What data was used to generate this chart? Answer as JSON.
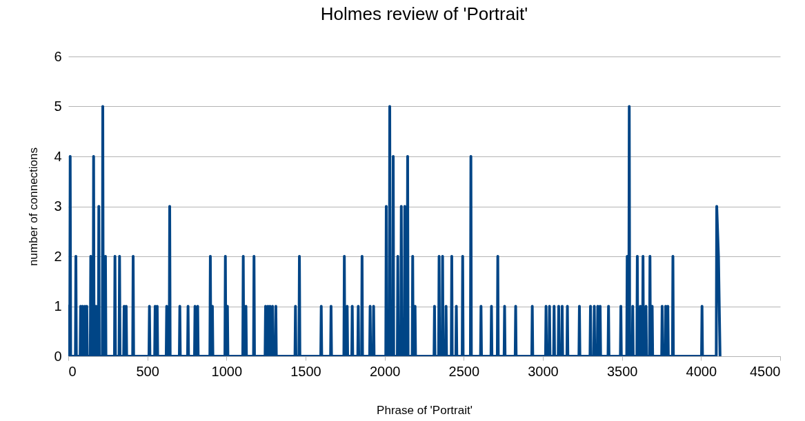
{
  "chart_data": {
    "type": "line",
    "title": "Holmes review of 'Portrait'",
    "xlabel": "Phrase of 'Portrait'",
    "ylabel": "number of connections",
    "xlim": [
      0,
      4500
    ],
    "xticks": [
      0,
      500,
      1000,
      1500,
      2000,
      2500,
      3000,
      3500,
      4000,
      4500
    ],
    "ylim": [
      0,
      6
    ],
    "yticks": [
      0,
      1,
      2,
      3,
      4,
      5,
      6
    ],
    "grid": "y",
    "series": [
      {
        "color": "#004586",
        "x": [
          0,
          3,
          9,
          12,
          15,
          45,
          48,
          51,
          75,
          78,
          81,
          87,
          90,
          93,
          102,
          105,
          108,
          114,
          117,
          120,
          139,
          142,
          145,
          157,
          160,
          163,
          172,
          175,
          178,
          190,
          193,
          196,
          215,
          218,
          221,
          232,
          235,
          238,
          292,
          295,
          298,
          321,
          324,
          327,
          350,
          353,
          356,
          363,
          366,
          369,
          407,
          410,
          413,
          510,
          513,
          516,
          546,
          549,
          552,
          559,
          562,
          565,
          619,
          622,
          625,
          638,
          641,
          644,
          702,
          705,
          708,
          754,
          757,
          760,
          798,
          801,
          804,
          815,
          818,
          821,
          895,
          898,
          901,
          908,
          911,
          914,
          990,
          993,
          996,
          1003,
          1006,
          1009,
          1103,
          1106,
          1109,
          1120,
          1123,
          1126,
          1171,
          1174,
          1177,
          1244,
          1247,
          1250,
          1259,
          1262,
          1265,
          1272,
          1275,
          1278,
          1288,
          1291,
          1294,
          1309,
          1312,
          1315,
          1433,
          1436,
          1439,
          1458,
          1461,
          1464,
          1596,
          1599,
          1602,
          1658,
          1661,
          1664,
          1742,
          1745,
          1748,
          1760,
          1763,
          1766,
          1792,
          1795,
          1798,
          1830,
          1833,
          1836,
          1854,
          1857,
          1860,
          1905,
          1908,
          1911,
          1927,
          1930,
          1933,
          2007,
          2010,
          2013,
          2029,
          2032,
          2035,
          2051,
          2054,
          2057,
          2080,
          2083,
          2086,
          2102,
          2105,
          2108,
          2124,
          2127,
          2130,
          2142,
          2145,
          2148,
          2174,
          2177,
          2180,
          2189,
          2192,
          2195,
          2312,
          2315,
          2318,
          2341,
          2344,
          2347,
          2363,
          2366,
          2369,
          2385,
          2388,
          2391,
          2421,
          2424,
          2427,
          2450,
          2453,
          2456,
          2490,
          2493,
          2496,
          2542,
          2545,
          2548,
          2606,
          2609,
          2612,
          2672,
          2675,
          2678,
          2712,
          2715,
          2718,
          2755,
          2758,
          2761,
          2825,
          2828,
          2831,
          2930,
          2933,
          2936,
          3017,
          3020,
          3023,
          3039,
          3042,
          3045,
          3068,
          3071,
          3074,
          3097,
          3100,
          3103,
          3119,
          3122,
          3125,
          3152,
          3155,
          3158,
          3228,
          3231,
          3234,
          3298,
          3301,
          3304,
          3322,
          3325,
          3328,
          3344,
          3347,
          3350,
          3359,
          3362,
          3365,
          3412,
          3415,
          3418,
          3490,
          3493,
          3496,
          3530,
          3533,
          3536,
          3543,
          3546,
          3549,
          3565,
          3568,
          3571,
          3594,
          3597,
          3600,
          3613,
          3616,
          3619,
          3630,
          3633,
          3636,
          3649,
          3652,
          3655,
          3674,
          3677,
          3680,
          3688,
          3691,
          3694,
          3751,
          3754,
          3757,
          3773,
          3776,
          3779,
          3787,
          3790,
          3793,
          3819,
          3822,
          3825,
          4003,
          4006,
          4009,
          4096,
          4099,
          4110,
          4115,
          4120
        ],
        "values": [
          1,
          0,
          0,
          4,
          0,
          0,
          2,
          0,
          0,
          1,
          0,
          0,
          1,
          0,
          0,
          1,
          0,
          0,
          1,
          0,
          0,
          2,
          0,
          0,
          4,
          0,
          0,
          1,
          0,
          0,
          3,
          0,
          0,
          5,
          0,
          0,
          2,
          0,
          0,
          2,
          0,
          0,
          2,
          0,
          0,
          1,
          0,
          0,
          1,
          0,
          0,
          2,
          0,
          0,
          1,
          0,
          0,
          1,
          0,
          0,
          1,
          0,
          0,
          1,
          0,
          0,
          3,
          0,
          0,
          1,
          0,
          0,
          1,
          0,
          0,
          1,
          0,
          0,
          1,
          0,
          0,
          2,
          0,
          0,
          1,
          0,
          0,
          2,
          0,
          0,
          1,
          0,
          0,
          2,
          0,
          0,
          1,
          0,
          0,
          2,
          0,
          0,
          1,
          0,
          0,
          1,
          0,
          0,
          1,
          0,
          0,
          1,
          0,
          0,
          1,
          0,
          0,
          1,
          0,
          0,
          2,
          0,
          0,
          1,
          0,
          0,
          1,
          0,
          0,
          2,
          0,
          0,
          1,
          0,
          0,
          1,
          0,
          0,
          1,
          0,
          0,
          2,
          0,
          0,
          1,
          0,
          0,
          1,
          0,
          0,
          3,
          0,
          0,
          5,
          0,
          0,
          4,
          0,
          0,
          2,
          0,
          0,
          3,
          0,
          0,
          3,
          0,
          0,
          4,
          0,
          0,
          2,
          0,
          0,
          1,
          0,
          0,
          1,
          0,
          0,
          2,
          0,
          0,
          2,
          0,
          0,
          1,
          0,
          0,
          2,
          0,
          0,
          1,
          0,
          0,
          2,
          0,
          0,
          4,
          0,
          0,
          1,
          0,
          0,
          1,
          0,
          0,
          2,
          0,
          0,
          1,
          0,
          0,
          1,
          0,
          0,
          1,
          0,
          0,
          1,
          0,
          0,
          1,
          0,
          0,
          1,
          0,
          0,
          1,
          0,
          0,
          1,
          0,
          0,
          1,
          0,
          0,
          1,
          0,
          0,
          1,
          0,
          0,
          1,
          0,
          0,
          1,
          0,
          0,
          1,
          0,
          0,
          1,
          0,
          0,
          1,
          0,
          0,
          2,
          0,
          0,
          5,
          0,
          0,
          1,
          0,
          0,
          2,
          0,
          0,
          1,
          0,
          0,
          2,
          0,
          0,
          1,
          0,
          0,
          2,
          0,
          0,
          1,
          0,
          0,
          1,
          0,
          0,
          1,
          0,
          0,
          1,
          0,
          0,
          2,
          0,
          0,
          1,
          0,
          0,
          3,
          2,
          1,
          0
        ]
      }
    ]
  }
}
